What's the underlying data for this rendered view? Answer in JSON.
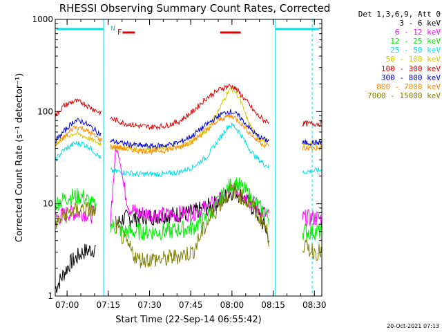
{
  "chart_data": {
    "type": "line",
    "title": "RHESSI Observing Summary Count Rates, Corrected",
    "xlabel": "Start Time (22-Sep-14 06:55:42)",
    "ylabel": "Corrected Count Rate (s⁻¹ detector⁻¹)",
    "y_scale": "log",
    "ylim": [
      1,
      1000
    ],
    "xlim_minutes_after_start": [
      0,
      97
    ],
    "x_tick_labels": [
      "07:00",
      "07:15",
      "07:30",
      "07:45",
      "08:00",
      "08:15",
      "08:30"
    ],
    "x_tick_minutes": [
      4.3,
      19.3,
      34.3,
      49.3,
      64.3,
      79.3,
      94.3
    ],
    "y_tick_labels": [
      "1",
      "10",
      "100",
      "1000"
    ],
    "y_tick_values": [
      1,
      10,
      100,
      1000
    ],
    "legend_header": "Det 1,3,6,9, Att 0",
    "legend_placement": "right",
    "date_stamp": "20-Oct-2021 07:13",
    "annotations": {
      "night_marker": "N",
      "flare_marker": "F",
      "night_line_color": "#00e0e8",
      "flare_bar_color": "#e00000",
      "vertical_lines_minutes": [
        17.6,
        80.1
      ],
      "dashed_lines_minutes": [
        17.6,
        93.5
      ]
    },
    "series": [
      {
        "name": "3 - 6 keV",
        "color": "#000000",
        "x": [
          0,
          5,
          10,
          15,
          17,
          18,
          22,
          25,
          30,
          40,
          50,
          58,
          62,
          65,
          68,
          72,
          76,
          78,
          80,
          85,
          90,
          95,
          97
        ],
        "y": [
          1.2,
          2.2,
          3.0,
          3.3,
          0,
          0,
          6,
          7,
          7,
          7.5,
          8,
          10,
          12,
          14,
          12,
          9,
          6,
          4,
          0,
          0,
          0,
          0,
          0
        ]
      },
      {
        "name": "6 - 12 keV",
        "color": "#ff00ff",
        "x": [
          0,
          5,
          10,
          15,
          17,
          18,
          20,
          21,
          22,
          23,
          24,
          25,
          27,
          30,
          40,
          50,
          55,
          60,
          63,
          65,
          68,
          72,
          76,
          78,
          80,
          85,
          90,
          95,
          97
        ],
        "y": [
          7,
          8,
          8,
          7.5,
          0,
          0,
          7,
          15,
          40,
          35,
          25,
          15,
          9,
          8,
          7.5,
          8,
          9,
          11,
          13,
          15,
          13,
          10,
          8,
          7,
          0,
          0,
          7,
          7,
          7
        ]
      },
      {
        "name": "12 - 25 keV",
        "color": "#00ee00",
        "x": [
          0,
          5,
          10,
          15,
          17,
          18,
          20,
          25,
          30,
          40,
          50,
          55,
          60,
          63,
          65,
          68,
          72,
          76,
          78,
          80,
          85,
          90,
          95,
          97
        ],
        "y": [
          10,
          12,
          12,
          9,
          0,
          0,
          6,
          5,
          5,
          5,
          5.5,
          7,
          11,
          15,
          17,
          15,
          11,
          8,
          7,
          0,
          0,
          5,
          5,
          5
        ]
      },
      {
        "name": "25 - 50 keV",
        "color": "#00e0e8",
        "x": [
          0,
          3,
          7,
          10,
          13,
          17,
          18,
          20,
          25,
          30,
          35,
          40,
          45,
          50,
          55,
          60,
          63,
          65,
          67,
          70,
          73,
          76,
          78,
          80,
          85,
          90,
          95,
          97
        ],
        "y": [
          30,
          38,
          45,
          45,
          40,
          30,
          0,
          23,
          22,
          21,
          21,
          21,
          22,
          25,
          32,
          52,
          70,
          70,
          60,
          42,
          32,
          27,
          25,
          0,
          0,
          22,
          23,
          23
        ]
      },
      {
        "name": "50 - 100 keV",
        "color": "#d8c800",
        "x": [
          0,
          3,
          7,
          10,
          13,
          17,
          18,
          20,
          25,
          30,
          35,
          40,
          45,
          50,
          55,
          60,
          63,
          65,
          67,
          70,
          73,
          76,
          78,
          80,
          85,
          90,
          95,
          97
        ],
        "y": [
          44,
          52,
          58,
          55,
          50,
          44,
          0,
          41,
          40,
          39,
          39,
          40,
          41,
          48,
          62,
          110,
          170,
          175,
          140,
          80,
          55,
          48,
          46,
          0,
          0,
          44,
          45,
          45
        ]
      },
      {
        "name": "100 - 300 keV",
        "color": "#e00000",
        "x": [
          0,
          3,
          7,
          10,
          13,
          17,
          18,
          20,
          25,
          30,
          35,
          40,
          45,
          50,
          55,
          60,
          63,
          65,
          67,
          70,
          73,
          76,
          78,
          80,
          85,
          90,
          95,
          97
        ],
        "y": [
          90,
          115,
          130,
          125,
          110,
          95,
          0,
          85,
          75,
          70,
          68,
          70,
          78,
          100,
          140,
          175,
          190,
          185,
          160,
          125,
          95,
          80,
          78,
          0,
          0,
          74,
          74,
          74
        ]
      },
      {
        "name": "300 - 800 keV",
        "color": "#0000d0",
        "x": [
          0,
          3,
          7,
          10,
          13,
          17,
          18,
          20,
          25,
          30,
          35,
          40,
          45,
          50,
          55,
          60,
          63,
          65,
          67,
          70,
          73,
          76,
          78,
          80,
          85,
          90,
          95,
          97
        ],
        "y": [
          48,
          60,
          80,
          78,
          68,
          55,
          0,
          48,
          45,
          43,
          42,
          43,
          46,
          55,
          72,
          92,
          100,
          98,
          88,
          70,
          56,
          50,
          48,
          0,
          0,
          46,
          46,
          46
        ]
      },
      {
        "name": "800 - 7000 keV",
        "color": "#ff8800",
        "x": [
          0,
          3,
          7,
          10,
          13,
          17,
          18,
          20,
          25,
          30,
          35,
          40,
          45,
          50,
          55,
          60,
          63,
          65,
          67,
          70,
          73,
          76,
          78,
          80,
          85,
          90,
          95,
          97
        ],
        "y": [
          42,
          52,
          68,
          66,
          58,
          48,
          0,
          42,
          40,
          38,
          37,
          38,
          41,
          48,
          63,
          82,
          90,
          88,
          78,
          62,
          50,
          44,
          42,
          0,
          0,
          40,
          40,
          40
        ]
      },
      {
        "name": "7000 - 15000 keV",
        "color": "#808000",
        "x": [
          0,
          5,
          10,
          15,
          17,
          18,
          22,
          25,
          30,
          40,
          50,
          55,
          60,
          63,
          65,
          68,
          72,
          76,
          78,
          80,
          85,
          90,
          95,
          97
        ],
        "y": [
          6,
          8,
          9,
          8,
          0,
          0,
          6,
          4,
          2.5,
          2.5,
          3,
          6,
          10,
          13,
          14,
          12,
          9,
          6,
          4,
          0,
          0,
          3.5,
          3,
          3
        ]
      }
    ]
  }
}
